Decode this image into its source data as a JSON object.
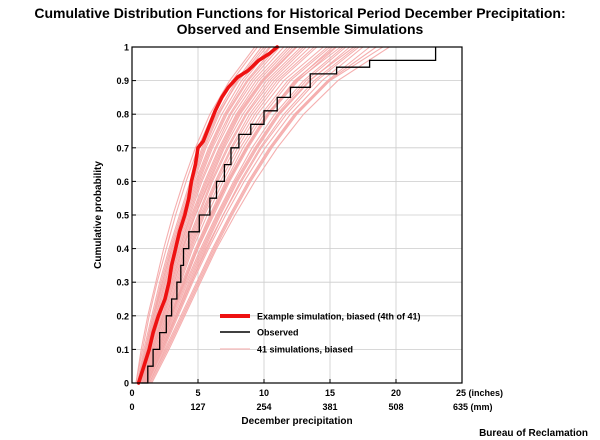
{
  "title": {
    "line1": "Cumulative Distribution Functions for Historical Period December Precipitation:",
    "line2": "Observed and Ensemble Simulations"
  },
  "credit": "Bureau of Reclamation",
  "chart_data": {
    "type": "line",
    "title": "Cumulative Distribution Functions for Historical Period December Precipitation: Observed and Ensemble Simulations",
    "xlabel": "December precipitation",
    "ylabel": "Cumulative probability",
    "xlim": [
      0,
      25
    ],
    "ylim": [
      0,
      1
    ],
    "x_ticks_inches": [
      0,
      5,
      10,
      15,
      20,
      25
    ],
    "x_tick_labels_inches": [
      "0",
      "5",
      "10",
      "15",
      "20",
      "25 (inches)"
    ],
    "x_tick_labels_mm": [
      "0",
      "127",
      "254",
      "381",
      "508",
      "635 (mm)"
    ],
    "y_ticks": [
      0,
      0.1,
      0.2,
      0.3,
      0.4,
      0.5,
      0.6,
      0.7,
      0.8,
      0.9,
      1
    ],
    "y_tick_labels": [
      "0",
      "0.1",
      "0.2",
      "0.3",
      "0.4",
      "0.5",
      "0.6",
      "0.7",
      "0.8",
      "0.9",
      "1"
    ],
    "grid": true,
    "legend_position": "bottom-right",
    "legend": [
      {
        "label": "Example simulation, biased (4th of 41)",
        "color": "#ee1111"
      },
      {
        "label": "Observed",
        "color": "#000000"
      },
      {
        "label": "41 simulations, biased",
        "color": "#f4a6a6"
      }
    ],
    "series": [
      {
        "name": "Example simulation, biased (4th of 41)",
        "color": "#ee1111",
        "x": [
          0.5,
          0.9,
          1.3,
          1.6,
          2.0,
          2.5,
          2.8,
          3.0,
          3.3,
          3.6,
          4.0,
          4.3,
          4.5,
          4.8,
          5.0,
          5.4,
          5.9,
          6.3,
          6.8,
          7.3,
          8.0,
          8.8,
          9.6,
          10.4,
          11.0
        ],
        "y": [
          0.0,
          0.05,
          0.1,
          0.15,
          0.2,
          0.25,
          0.3,
          0.35,
          0.4,
          0.45,
          0.5,
          0.55,
          0.6,
          0.65,
          0.7,
          0.72,
          0.77,
          0.81,
          0.85,
          0.88,
          0.91,
          0.93,
          0.96,
          0.98,
          1.0
        ]
      },
      {
        "name": "Observed",
        "color": "#000000",
        "x": [
          0.7,
          1.2,
          1.6,
          2.1,
          2.6,
          3.0,
          3.4,
          3.7,
          3.9,
          4.3,
          5.1,
          5.9,
          6.4,
          7.0,
          7.5,
          8.1,
          9.0,
          10.0,
          11.0,
          12.0,
          13.5,
          15.5,
          18.0,
          23.0
        ],
        "y": [
          0.0,
          0.05,
          0.1,
          0.15,
          0.2,
          0.25,
          0.3,
          0.35,
          0.4,
          0.45,
          0.5,
          0.55,
          0.6,
          0.65,
          0.7,
          0.74,
          0.77,
          0.81,
          0.85,
          0.88,
          0.92,
          0.94,
          0.96,
          1.0
        ]
      }
    ],
    "simulations": [
      {
        "x": [
          0.4,
          1.0,
          1.6,
          2.3,
          3.0,
          3.8,
          4.6,
          5.5,
          6.6,
          8.0,
          10.0
        ],
        "y": [
          0,
          0.1,
          0.2,
          0.3,
          0.4,
          0.5,
          0.6,
          0.7,
          0.8,
          0.9,
          1
        ]
      },
      {
        "x": [
          0.5,
          1.2,
          1.8,
          2.5,
          3.3,
          4.1,
          5.0,
          6.0,
          7.2,
          8.8,
          11.0
        ],
        "y": [
          0,
          0.1,
          0.2,
          0.3,
          0.4,
          0.5,
          0.6,
          0.7,
          0.8,
          0.9,
          1
        ]
      },
      {
        "x": [
          0.6,
          1.4,
          2.1,
          2.8,
          3.6,
          4.5,
          5.5,
          6.6,
          7.9,
          9.6,
          12.0
        ],
        "y": [
          0,
          0.1,
          0.2,
          0.3,
          0.4,
          0.5,
          0.6,
          0.7,
          0.8,
          0.9,
          1
        ]
      },
      {
        "x": [
          0.7,
          1.6,
          2.4,
          3.2,
          4.0,
          5.0,
          6.0,
          7.2,
          8.6,
          10.4,
          13.0
        ],
        "y": [
          0,
          0.1,
          0.2,
          0.3,
          0.4,
          0.5,
          0.6,
          0.7,
          0.8,
          0.9,
          1
        ]
      },
      {
        "x": [
          0.8,
          1.7,
          2.6,
          3.5,
          4.4,
          5.4,
          6.5,
          7.8,
          9.3,
          11.2,
          14.0
        ],
        "y": [
          0,
          0.1,
          0.2,
          0.3,
          0.4,
          0.5,
          0.6,
          0.7,
          0.8,
          0.9,
          1
        ]
      },
      {
        "x": [
          0.9,
          1.9,
          2.9,
          3.8,
          4.8,
          5.9,
          7.1,
          8.4,
          10.0,
          12.0,
          15.0
        ],
        "y": [
          0,
          0.1,
          0.2,
          0.3,
          0.4,
          0.5,
          0.6,
          0.7,
          0.8,
          0.9,
          1
        ]
      },
      {
        "x": [
          1.0,
          2.1,
          3.1,
          4.1,
          5.2,
          6.4,
          7.7,
          9.1,
          10.8,
          13.0,
          16.0
        ],
        "y": [
          0,
          0.1,
          0.2,
          0.3,
          0.4,
          0.5,
          0.6,
          0.7,
          0.8,
          0.9,
          1
        ]
      },
      {
        "x": [
          1.1,
          2.3,
          3.4,
          4.5,
          5.6,
          6.9,
          8.2,
          9.7,
          11.5,
          13.8,
          17.0
        ],
        "y": [
          0,
          0.1,
          0.2,
          0.3,
          0.4,
          0.5,
          0.6,
          0.7,
          0.8,
          0.9,
          1
        ]
      },
      {
        "x": [
          1.3,
          2.5,
          3.7,
          4.9,
          6.1,
          7.4,
          8.8,
          10.4,
          12.3,
          14.8,
          18.0
        ],
        "y": [
          0,
          0.1,
          0.2,
          0.3,
          0.4,
          0.5,
          0.6,
          0.7,
          0.8,
          0.9,
          1
        ]
      },
      {
        "x": [
          0.3,
          0.8,
          1.3,
          1.9,
          2.6,
          3.3,
          4.1,
          5.0,
          6.1,
          7.6,
          9.5
        ],
        "y": [
          0,
          0.1,
          0.2,
          0.3,
          0.4,
          0.5,
          0.6,
          0.7,
          0.8,
          0.9,
          1
        ]
      },
      {
        "x": [
          0.5,
          1.1,
          1.7,
          2.4,
          3.1,
          3.9,
          4.8,
          5.8,
          7.0,
          8.5,
          10.5
        ],
        "y": [
          0,
          0.1,
          0.2,
          0.3,
          0.4,
          0.5,
          0.6,
          0.7,
          0.8,
          0.9,
          1
        ]
      },
      {
        "x": [
          0.6,
          1.3,
          2.0,
          2.7,
          3.5,
          4.3,
          5.2,
          6.3,
          7.5,
          9.2,
          11.5
        ],
        "y": [
          0,
          0.1,
          0.2,
          0.3,
          0.4,
          0.5,
          0.6,
          0.7,
          0.8,
          0.9,
          1
        ]
      },
      {
        "x": [
          0.7,
          1.5,
          2.3,
          3.0,
          3.8,
          4.8,
          5.8,
          6.9,
          8.2,
          10.0,
          12.5
        ],
        "y": [
          0,
          0.1,
          0.2,
          0.3,
          0.4,
          0.5,
          0.6,
          0.7,
          0.8,
          0.9,
          1
        ]
      },
      {
        "x": [
          0.8,
          1.8,
          2.7,
          3.6,
          4.5,
          5.5,
          6.7,
          8.0,
          9.5,
          11.5,
          14.5
        ],
        "y": [
          0,
          0.1,
          0.2,
          0.3,
          0.4,
          0.5,
          0.6,
          0.7,
          0.8,
          0.9,
          1
        ]
      },
      {
        "x": [
          1.0,
          2.0,
          3.0,
          4.0,
          5.0,
          6.2,
          7.4,
          8.8,
          10.4,
          12.6,
          15.5
        ],
        "y": [
          0,
          0.1,
          0.2,
          0.3,
          0.4,
          0.5,
          0.6,
          0.7,
          0.8,
          0.9,
          1
        ]
      },
      {
        "x": [
          1.2,
          2.4,
          3.5,
          4.6,
          5.8,
          7.1,
          8.5,
          10.1,
          12.0,
          14.4,
          17.5
        ],
        "y": [
          0,
          0.1,
          0.2,
          0.3,
          0.4,
          0.5,
          0.6,
          0.7,
          0.8,
          0.9,
          1
        ]
      },
      {
        "x": [
          0.4,
          0.9,
          1.5,
          2.1,
          2.8,
          3.6,
          4.4,
          5.3,
          6.4,
          7.9,
          9.8
        ],
        "y": [
          0,
          0.1,
          0.2,
          0.3,
          0.4,
          0.5,
          0.6,
          0.7,
          0.8,
          0.9,
          1
        ]
      },
      {
        "x": [
          0.6,
          1.2,
          1.9,
          2.6,
          3.4,
          4.2,
          5.1,
          6.1,
          7.4,
          9.0,
          11.2
        ],
        "y": [
          0,
          0.1,
          0.2,
          0.3,
          0.4,
          0.5,
          0.6,
          0.7,
          0.8,
          0.9,
          1
        ]
      },
      {
        "x": [
          0.8,
          1.6,
          2.5,
          3.3,
          4.2,
          5.2,
          6.3,
          7.5,
          8.9,
          10.8,
          13.5
        ],
        "y": [
          0,
          0.1,
          0.2,
          0.3,
          0.4,
          0.5,
          0.6,
          0.7,
          0.8,
          0.9,
          1
        ]
      },
      {
        "x": [
          0.9,
          2.0,
          3.0,
          3.9,
          4.9,
          6.0,
          7.2,
          8.6,
          10.2,
          12.4,
          15.2
        ],
        "y": [
          0,
          0.1,
          0.2,
          0.3,
          0.4,
          0.5,
          0.6,
          0.7,
          0.8,
          0.9,
          1
        ]
      },
      {
        "x": [
          1.1,
          2.2,
          3.3,
          4.4,
          5.5,
          6.7,
          8.0,
          9.5,
          11.2,
          13.5,
          16.5
        ],
        "y": [
          0,
          0.1,
          0.2,
          0.3,
          0.4,
          0.5,
          0.6,
          0.7,
          0.8,
          0.9,
          1
        ]
      },
      {
        "x": [
          1.4,
          2.7,
          3.9,
          5.1,
          6.3,
          7.6,
          9.0,
          10.6,
          12.5,
          15.0,
          19.0
        ],
        "y": [
          0,
          0.1,
          0.2,
          0.3,
          0.4,
          0.5,
          0.6,
          0.7,
          0.8,
          0.9,
          1
        ]
      },
      {
        "x": [
          0.5,
          1.0,
          1.6,
          2.2,
          2.9,
          3.7,
          4.5,
          5.4,
          6.5,
          8.1,
          10.2
        ],
        "y": [
          0,
          0.1,
          0.2,
          0.3,
          0.4,
          0.5,
          0.6,
          0.7,
          0.8,
          0.9,
          1
        ]
      },
      {
        "x": [
          0.7,
          1.4,
          2.2,
          2.9,
          3.7,
          4.6,
          5.6,
          6.7,
          8.0,
          9.8,
          12.2
        ],
        "y": [
          0,
          0.1,
          0.2,
          0.3,
          0.4,
          0.5,
          0.6,
          0.7,
          0.8,
          0.9,
          1
        ]
      },
      {
        "x": [
          0.9,
          1.8,
          2.8,
          3.7,
          4.6,
          5.7,
          6.9,
          8.2,
          9.8,
          11.8,
          14.8
        ],
        "y": [
          0,
          0.1,
          0.2,
          0.3,
          0.4,
          0.5,
          0.6,
          0.7,
          0.8,
          0.9,
          1
        ]
      },
      {
        "x": [
          1.2,
          2.3,
          3.4,
          4.5,
          5.7,
          6.9,
          8.3,
          9.8,
          11.7,
          14.0,
          17.2
        ],
        "y": [
          0,
          0.1,
          0.2,
          0.3,
          0.4,
          0.5,
          0.6,
          0.7,
          0.8,
          0.9,
          1
        ]
      },
      {
        "x": [
          0.4,
          1.1,
          1.8,
          2.5,
          3.2,
          4.0,
          4.9,
          5.9,
          7.1,
          8.7,
          10.8
        ],
        "y": [
          0,
          0.1,
          0.2,
          0.3,
          0.4,
          0.5,
          0.6,
          0.7,
          0.8,
          0.9,
          1
        ]
      },
      {
        "x": [
          0.6,
          1.5,
          2.3,
          3.1,
          3.9,
          4.8,
          5.9,
          7.0,
          8.4,
          10.2,
          12.8
        ],
        "y": [
          0,
          0.1,
          0.2,
          0.3,
          0.4,
          0.5,
          0.6,
          0.7,
          0.8,
          0.9,
          1
        ]
      },
      {
        "x": [
          0.8,
          1.7,
          2.6,
          3.4,
          4.3,
          5.3,
          6.4,
          7.6,
          9.1,
          11.0,
          13.8
        ],
        "y": [
          0,
          0.1,
          0.2,
          0.3,
          0.4,
          0.5,
          0.6,
          0.7,
          0.8,
          0.9,
          1
        ]
      },
      {
        "x": [
          1.0,
          2.1,
          3.2,
          4.2,
          5.3,
          6.5,
          7.8,
          9.3,
          11.0,
          13.2,
          16.2
        ],
        "y": [
          0,
          0.1,
          0.2,
          0.3,
          0.4,
          0.5,
          0.6,
          0.7,
          0.8,
          0.9,
          1
        ]
      },
      {
        "x": [
          1.3,
          2.6,
          3.8,
          5.0,
          6.2,
          7.5,
          8.9,
          10.5,
          12.4,
          14.9,
          18.5
        ],
        "y": [
          0,
          0.1,
          0.2,
          0.3,
          0.4,
          0.5,
          0.6,
          0.7,
          0.8,
          0.9,
          1
        ]
      },
      {
        "x": [
          0.3,
          0.7,
          1.2,
          1.8,
          2.4,
          3.1,
          3.9,
          4.8,
          5.9,
          7.4,
          9.3
        ],
        "y": [
          0,
          0.1,
          0.2,
          0.3,
          0.4,
          0.5,
          0.6,
          0.7,
          0.8,
          0.9,
          1
        ]
      },
      {
        "x": [
          0.5,
          1.3,
          2.0,
          2.8,
          3.6,
          4.4,
          5.3,
          6.4,
          7.7,
          9.4,
          11.8
        ],
        "y": [
          0,
          0.1,
          0.2,
          0.3,
          0.4,
          0.5,
          0.6,
          0.7,
          0.8,
          0.9,
          1
        ]
      },
      {
        "x": [
          0.7,
          1.6,
          2.4,
          3.2,
          4.1,
          5.1,
          6.1,
          7.3,
          8.7,
          10.6,
          13.2
        ],
        "y": [
          0,
          0.1,
          0.2,
          0.3,
          0.4,
          0.5,
          0.6,
          0.7,
          0.8,
          0.9,
          1
        ]
      },
      {
        "x": [
          0.9,
          1.9,
          2.9,
          3.9,
          4.9,
          6.0,
          7.3,
          8.7,
          10.3,
          12.5,
          15.8
        ],
        "y": [
          0,
          0.1,
          0.2,
          0.3,
          0.4,
          0.5,
          0.6,
          0.7,
          0.8,
          0.9,
          1
        ]
      },
      {
        "x": [
          1.1,
          2.2,
          3.3,
          4.3,
          5.4,
          6.6,
          7.9,
          9.4,
          11.1,
          13.4,
          16.8
        ],
        "y": [
          0,
          0.1,
          0.2,
          0.3,
          0.4,
          0.5,
          0.6,
          0.7,
          0.8,
          0.9,
          1
        ]
      },
      {
        "x": [
          1.5,
          2.8,
          4.0,
          5.2,
          6.4,
          7.8,
          9.3,
          11.0,
          13.0,
          15.6,
          19.5
        ],
        "y": [
          0,
          0.1,
          0.2,
          0.3,
          0.4,
          0.5,
          0.6,
          0.7,
          0.8,
          0.9,
          1
        ]
      },
      {
        "x": [
          0.6,
          1.1,
          1.7,
          2.3,
          3.0,
          3.8,
          4.7,
          5.6,
          6.8,
          8.3,
          10.4
        ],
        "y": [
          0,
          0.1,
          0.2,
          0.3,
          0.4,
          0.5,
          0.6,
          0.7,
          0.8,
          0.9,
          1
        ]
      },
      {
        "x": [
          0.8,
          1.5,
          2.3,
          3.0,
          3.8,
          4.7,
          5.7,
          6.8,
          8.1,
          9.9,
          12.4
        ],
        "y": [
          0,
          0.1,
          0.2,
          0.3,
          0.4,
          0.5,
          0.6,
          0.7,
          0.8,
          0.9,
          1
        ]
      },
      {
        "x": [
          1.0,
          2.0,
          3.0,
          4.0,
          5.0,
          6.1,
          7.3,
          8.7,
          10.3,
          12.3,
          15.4
        ],
        "y": [
          0,
          0.1,
          0.2,
          0.3,
          0.4,
          0.5,
          0.6,
          0.7,
          0.8,
          0.9,
          1
        ]
      }
    ]
  }
}
